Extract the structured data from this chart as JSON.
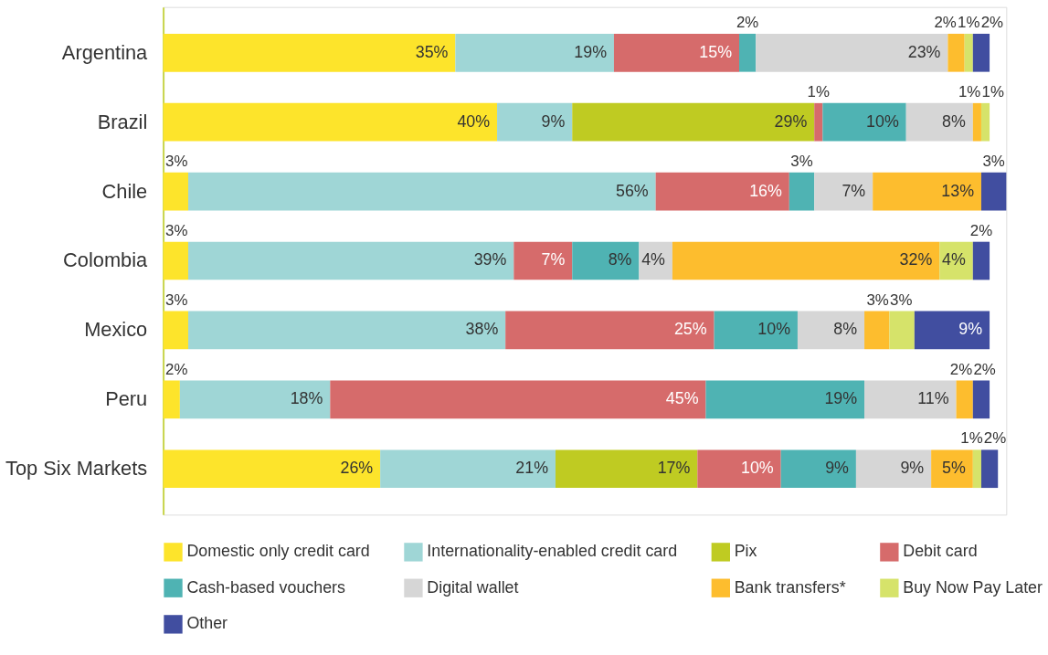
{
  "chart_data": {
    "type": "bar",
    "orientation": "horizontal",
    "stacked": true,
    "legend": "bottom",
    "tick_labels": "y",
    "categories": [
      "Argentina",
      "Brazil",
      "Chile",
      "Colombia",
      "Mexico",
      "Peru",
      "Top Six Markets"
    ],
    "series": [
      {
        "name": "Domestic only credit card",
        "color": "#fde42b",
        "values": [
          35,
          40,
          3,
          3,
          3,
          2,
          26
        ],
        "value_labels": [
          "35%",
          "40%",
          "3%",
          "3%",
          "3%",
          "2%",
          "26%"
        ]
      },
      {
        "name": "Internationality-enabled credit card",
        "color": "#9fd6d6",
        "values": [
          19,
          9,
          56,
          39,
          38,
          18,
          21
        ],
        "value_labels": [
          "19%",
          "9%",
          "56%",
          "39%",
          "38%",
          "18%",
          "21%"
        ]
      },
      {
        "name": "Pix",
        "color": "#bfcb22",
        "values": [
          null,
          29,
          null,
          null,
          null,
          null,
          17
        ],
        "value_labels": [
          null,
          "29%",
          null,
          null,
          null,
          null,
          "17%"
        ]
      },
      {
        "name": "Debit card",
        "color": "#d66b6b",
        "values": [
          15,
          1,
          16,
          7,
          25,
          45,
          10
        ],
        "value_labels": [
          "15%",
          "1%",
          "16%",
          "7%",
          "25%",
          "45%",
          "10%"
        ]
      },
      {
        "name": "Cash-based vouchers",
        "color": "#4fb3b3",
        "values": [
          2,
          10,
          3,
          8,
          10,
          19,
          9
        ],
        "value_labels": [
          "2%",
          "10%",
          "3%",
          "8%",
          "10%",
          "19%",
          "9%"
        ]
      },
      {
        "name": "Digital wallet",
        "color": "#d6d6d6",
        "values": [
          23,
          8,
          7,
          4,
          8,
          11,
          9
        ],
        "value_labels": [
          "23%",
          "8%",
          "7%",
          "4%",
          "8%",
          "11%",
          "9%"
        ]
      },
      {
        "name": "Bank transfers*",
        "color": "#fdbd2e",
        "values": [
          2,
          1,
          13,
          32,
          3,
          2,
          5
        ],
        "value_labels": [
          "2%",
          "1%",
          "13%",
          "32%",
          "3%",
          "2%",
          "5%"
        ]
      },
      {
        "name": "Buy Now Pay Later",
        "color": "#d6e36a",
        "values": [
          1,
          1,
          null,
          4,
          3,
          null,
          1
        ],
        "value_labels": [
          "1%",
          "1%",
          null,
          "4%",
          "3%",
          null,
          "1%"
        ]
      },
      {
        "name": "Other",
        "color": "#414ea0",
        "values": [
          2,
          null,
          3,
          2,
          9,
          2,
          2
        ],
        "value_labels": [
          "2%",
          null,
          "3%",
          "2%",
          "9%",
          "2%",
          "2%"
        ]
      }
    ]
  }
}
